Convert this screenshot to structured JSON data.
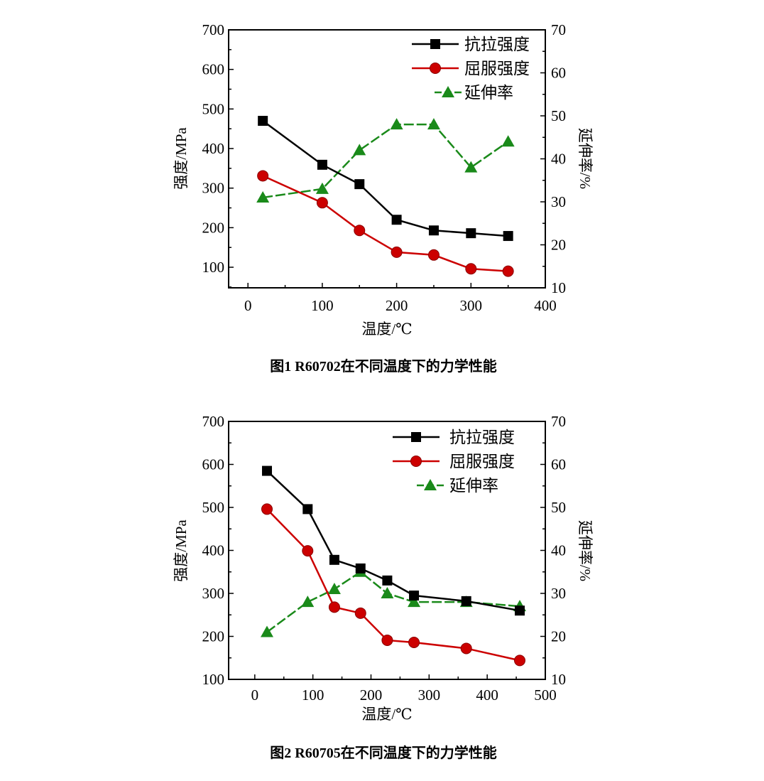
{
  "chart_data": [
    {
      "type": "line",
      "caption": "图1    R60702在不同温度下的力学性能",
      "xlabel": "温度/℃",
      "ylabel": "强度/MPa",
      "y2label": "延伸率/%",
      "xlim": [
        -26,
        400
      ],
      "ylim": [
        48,
        700
      ],
      "y2lim": [
        10,
        70
      ],
      "xticks": [
        0,
        100,
        200,
        300,
        400
      ],
      "yticks": [
        100,
        200,
        300,
        400,
        500,
        600,
        700
      ],
      "y2ticks": [
        10,
        20,
        30,
        40,
        50,
        60,
        70
      ],
      "legend_position": "top-right",
      "grid": false,
      "series": [
        {
          "name": "抗拉强度",
          "axis": "left",
          "marker": "square",
          "color": "#000000",
          "x": [
            20,
            100,
            150,
            200,
            250,
            300,
            350
          ],
          "values": [
            470,
            359,
            310,
            220,
            193,
            186,
            179
          ]
        },
        {
          "name": "屈服强度",
          "axis": "left",
          "marker": "circle",
          "color": "#cc0000",
          "x": [
            20,
            100,
            150,
            200,
            250,
            300,
            350
          ],
          "values": [
            331,
            263,
            193,
            138,
            131,
            96,
            90
          ]
        },
        {
          "name": "延伸率",
          "axis": "right",
          "marker": "triangle",
          "color": "#1a8a1a",
          "dashed": true,
          "x": [
            20,
            100,
            150,
            200,
            250,
            300,
            350
          ],
          "values": [
            31,
            33,
            42,
            48,
            48,
            38,
            44
          ]
        }
      ]
    },
    {
      "type": "line",
      "caption": "图2    R60705在不同温度下的力学性能",
      "xlabel": "温度/℃",
      "ylabel": "强度/MPa",
      "y2label": "延伸率/%",
      "xlim": [
        -45,
        500
      ],
      "ylim": [
        100,
        700
      ],
      "y2lim": [
        10,
        70
      ],
      "xticks": [
        0,
        100,
        200,
        300,
        400,
        500
      ],
      "yticks": [
        100,
        200,
        300,
        400,
        500,
        600,
        700
      ],
      "y2ticks": [
        10,
        20,
        30,
        40,
        50,
        60,
        70
      ],
      "legend_position": "top-right",
      "grid": false,
      "series": [
        {
          "name": "抗拉强度",
          "axis": "left",
          "marker": "square",
          "color": "#000000",
          "x": [
            21,
            91,
            137,
            182,
            228,
            274,
            364,
            456
          ],
          "values": [
            585,
            496,
            378,
            358,
            330,
            295,
            282,
            260
          ]
        },
        {
          "name": "屈服强度",
          "axis": "left",
          "marker": "circle",
          "color": "#cc0000",
          "x": [
            21,
            91,
            137,
            182,
            228,
            274,
            364,
            456
          ],
          "values": [
            496,
            399,
            268,
            254,
            191,
            186,
            172,
            144
          ]
        },
        {
          "name": "延伸率",
          "axis": "right",
          "marker": "triangle",
          "color": "#1a8a1a",
          "dashed": true,
          "x": [
            21,
            91,
            137,
            182,
            228,
            274,
            364,
            456
          ],
          "values": [
            21,
            28,
            31,
            35,
            30,
            28,
            28,
            27
          ]
        }
      ]
    }
  ]
}
